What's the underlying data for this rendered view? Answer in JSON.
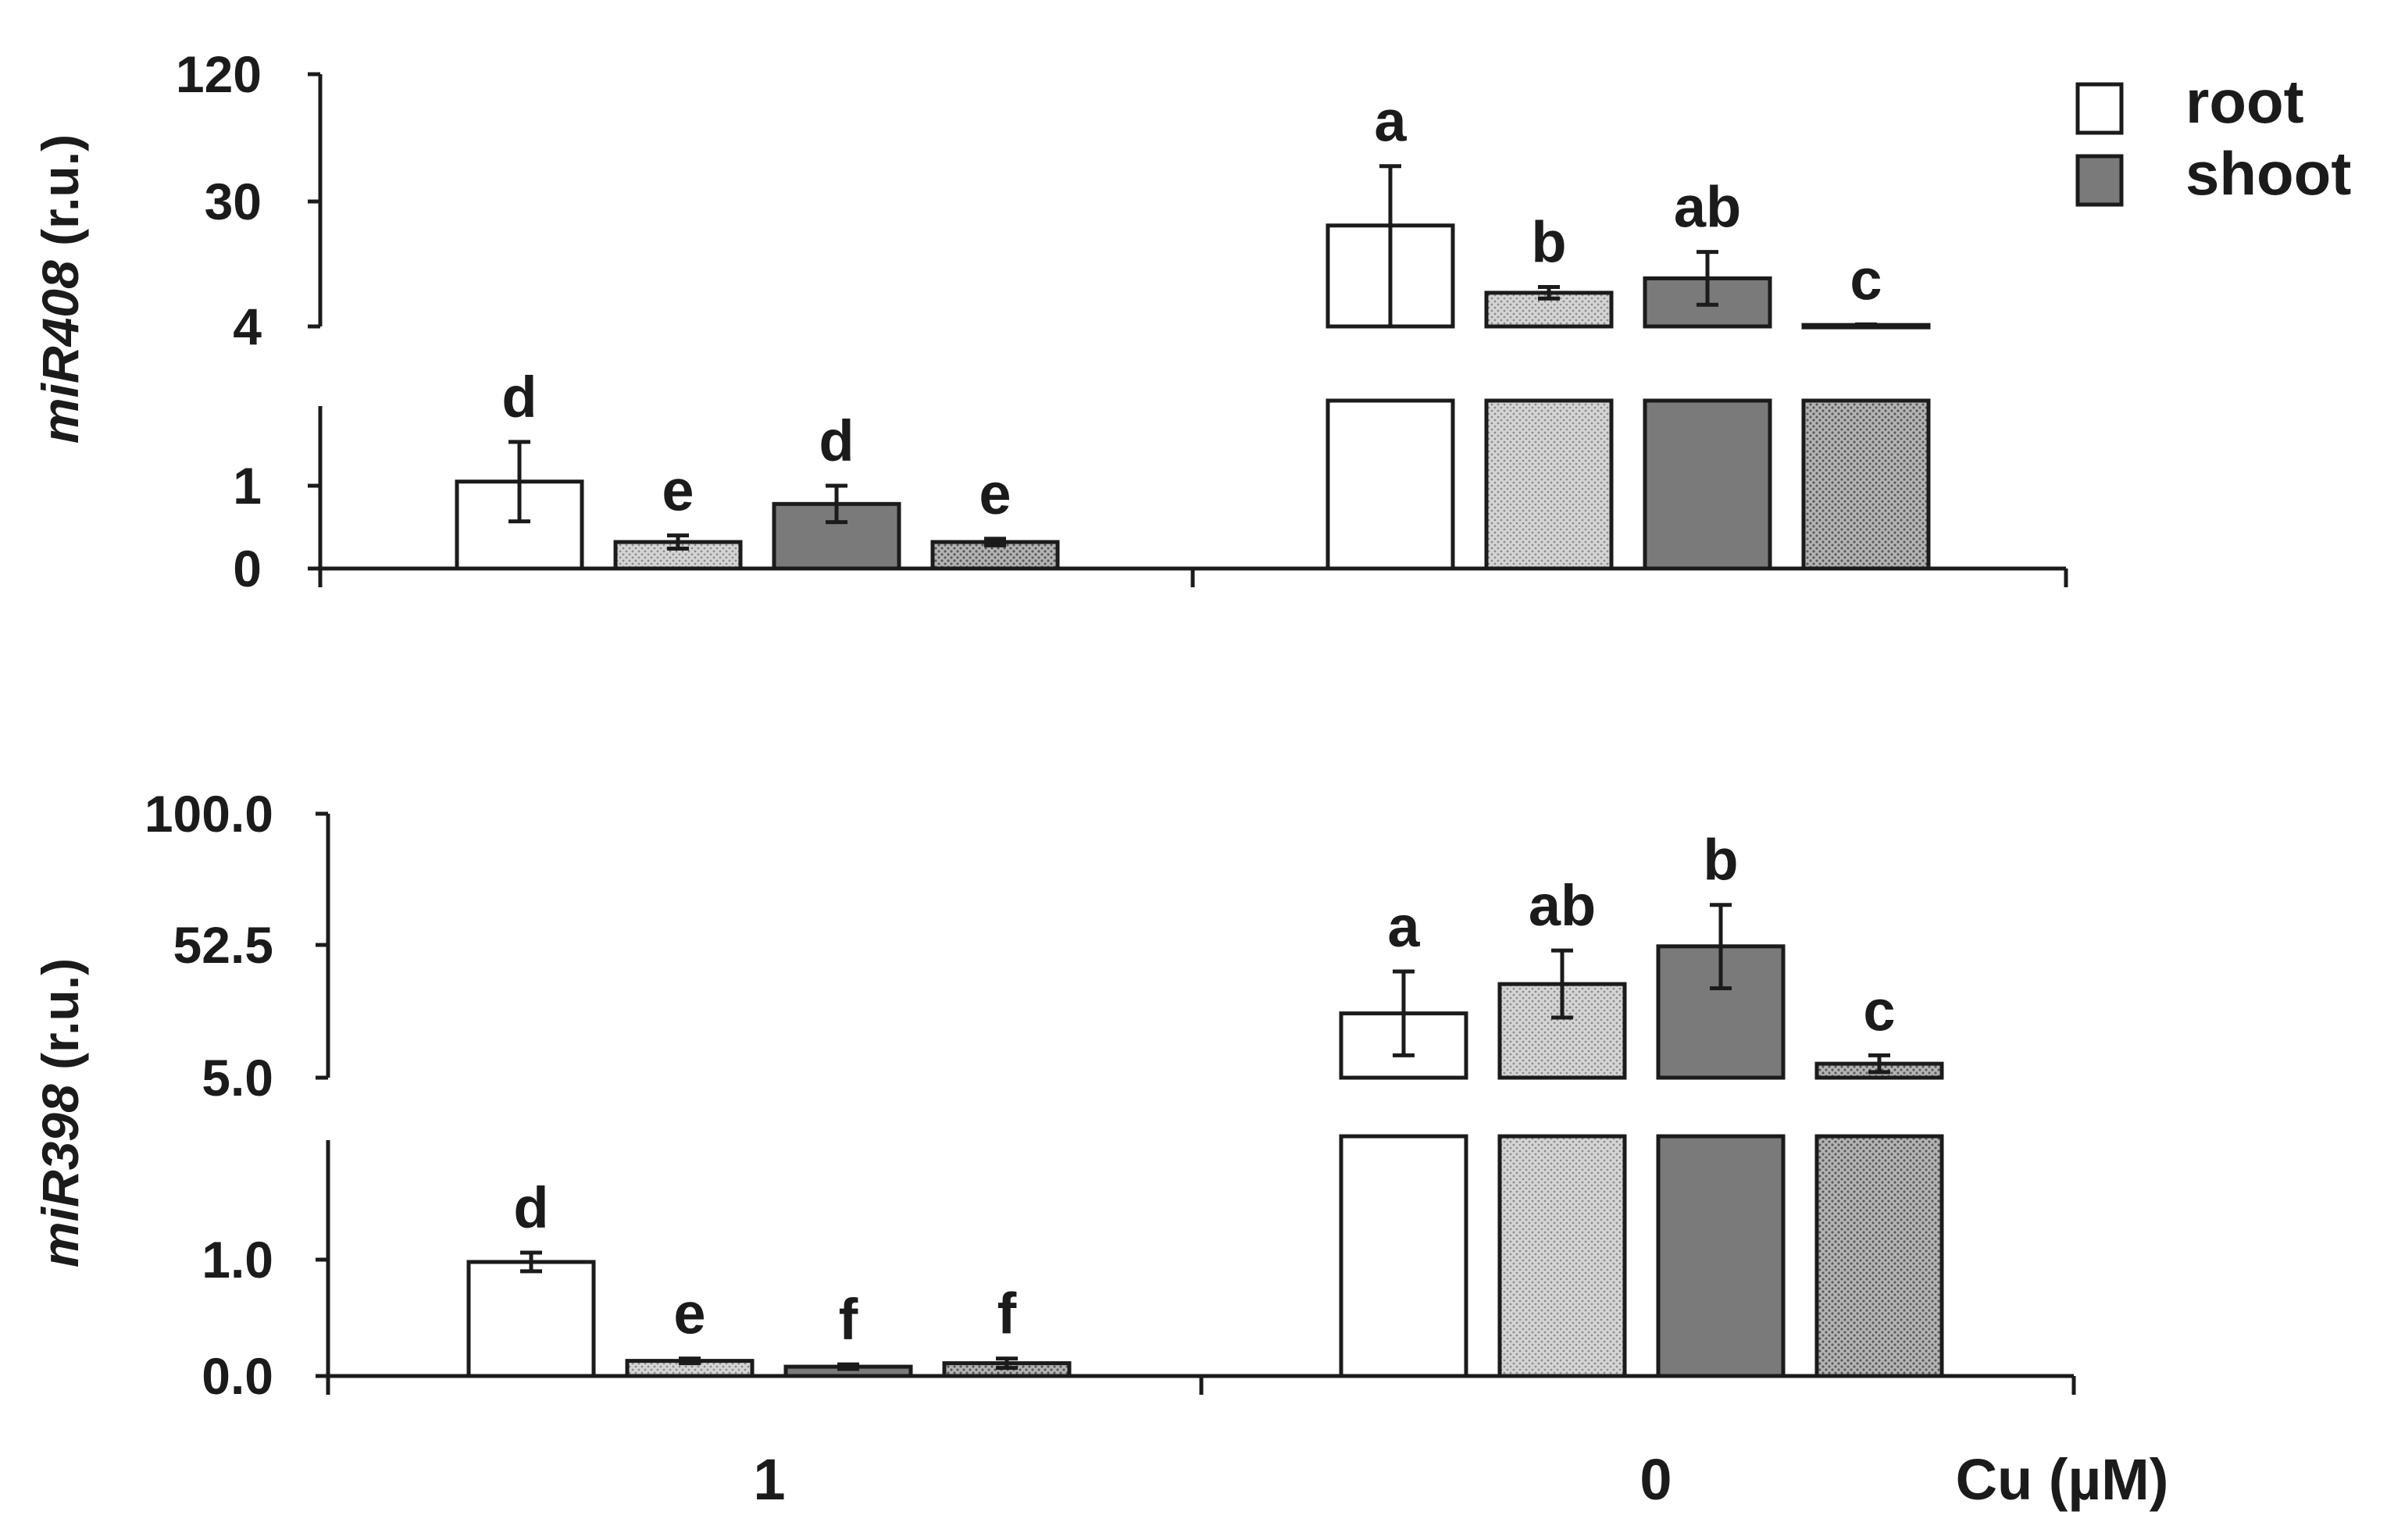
{
  "chart_data": [
    {
      "type": "bar",
      "scale": "broken-axis",
      "ylabel": {
        "gene": "miR408",
        "unit": "(r.u.)"
      },
      "lower_ticks": [
        "0",
        "1"
      ],
      "upper_ticks": [
        "4",
        "30",
        "120"
      ],
      "lower_ylim": [
        0,
        2
      ],
      "upper_ylim": [
        4,
        120
      ],
      "categories": [
        "1",
        "0"
      ],
      "bars": [
        {
          "group": "1",
          "fill": "white",
          "value": 1.05,
          "err": 0.48,
          "letter": "d"
        },
        {
          "group": "1",
          "fill": "light-dotted",
          "value": 0.32,
          "err": 0.08,
          "letter": "e"
        },
        {
          "group": "1",
          "fill": "dark",
          "value": 0.78,
          "err": 0.22,
          "letter": "d"
        },
        {
          "group": "1",
          "fill": "dark-dotted",
          "value": 0.32,
          "err": 0.04,
          "letter": "e"
        },
        {
          "group": "0",
          "fill": "white",
          "value": 25,
          "err": 30,
          "letter": "a"
        },
        {
          "group": "0",
          "fill": "light-dotted",
          "value": 11,
          "err": 1.2,
          "letter": "b"
        },
        {
          "group": "0",
          "fill": "dark",
          "value": 14,
          "err": 5.5,
          "letter": "ab"
        },
        {
          "group": "0",
          "fill": "dark-dotted",
          "value": 4.3,
          "err": 0.12,
          "letter": "c"
        }
      ]
    },
    {
      "type": "bar",
      "scale": "broken-axis",
      "ylabel": {
        "gene": "miR398",
        "unit": "(r.u.)"
      },
      "lower_ticks": [
        "0.0",
        "1.0"
      ],
      "upper_ticks": [
        "5.0",
        "52.5",
        "100.0"
      ],
      "lower_ylim": [
        0,
        2
      ],
      "upper_ylim": [
        5,
        100
      ],
      "categories": [
        "1",
        "0"
      ],
      "bars": [
        {
          "group": "1",
          "fill": "white",
          "value": 0.98,
          "err": 0.08,
          "letter": "d"
        },
        {
          "group": "1",
          "fill": "light-dotted",
          "value": 0.13,
          "err": 0.02,
          "letter": "e"
        },
        {
          "group": "1",
          "fill": "dark",
          "value": 0.08,
          "err": 0.02,
          "letter": "f"
        },
        {
          "group": "1",
          "fill": "dark-dotted",
          "value": 0.11,
          "err": 0.04,
          "letter": "f"
        },
        {
          "group": "0",
          "fill": "white",
          "value": 28,
          "err": 15,
          "letter": "a"
        },
        {
          "group": "0",
          "fill": "light-dotted",
          "value": 38.5,
          "err": 12,
          "letter": "ab"
        },
        {
          "group": "0",
          "fill": "dark",
          "value": 52,
          "err": 15,
          "letter": "b"
        },
        {
          "group": "0",
          "fill": "dark-dotted",
          "value": 10,
          "err": 3,
          "letter": "c"
        }
      ]
    }
  ],
  "legend": [
    {
      "label": "root",
      "fill": "white"
    },
    {
      "label": "shoot",
      "fill": "dark"
    }
  ],
  "x_axis": {
    "category_labels": [
      "1",
      "0"
    ],
    "unit_label": "Cu (µM)"
  },
  "colors": {
    "axis": "#1b1b1b",
    "dark_fill": "#7a7a7a",
    "light_fill": "#c8c8c8",
    "white_fill": "#ffffff"
  }
}
